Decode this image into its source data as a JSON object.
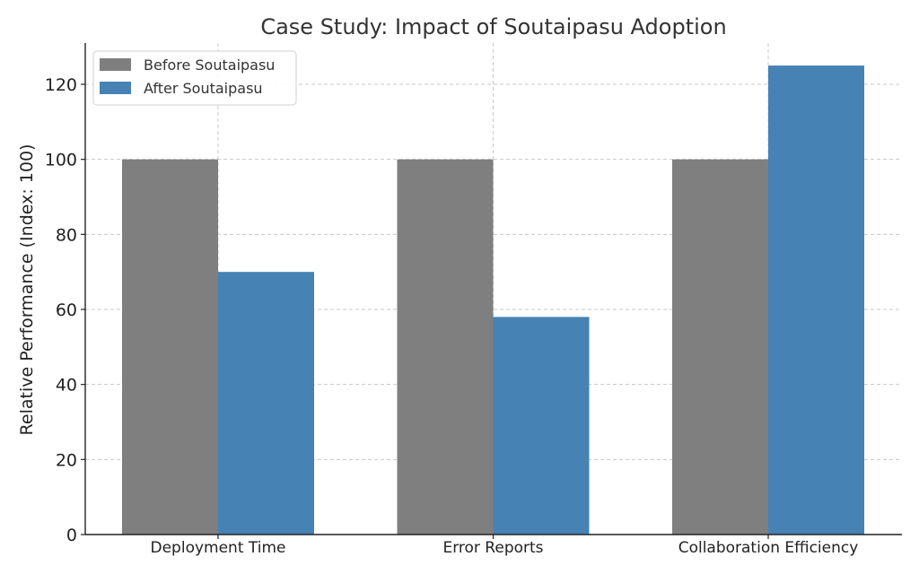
{
  "chart_data": {
    "type": "bar",
    "title": "Case Study: Impact of Soutaipasu Adoption",
    "xlabel": "",
    "ylabel": "Relative Performance (Index: 100)",
    "categories": [
      "Deployment Time",
      "Error Reports",
      "Collaboration Efficiency"
    ],
    "series": [
      {
        "name": "Before Soutaipasu",
        "values": [
          100,
          100,
          100
        ],
        "color": "#7f7f7f"
      },
      {
        "name": "After Soutaipasu",
        "values": [
          70,
          58,
          125
        ],
        "color": "#4682b4"
      }
    ],
    "ylim": [
      0,
      131
    ],
    "yticks": [
      0,
      20,
      40,
      60,
      80,
      100,
      120
    ],
    "grid": true,
    "legend_position": "top-left"
  }
}
